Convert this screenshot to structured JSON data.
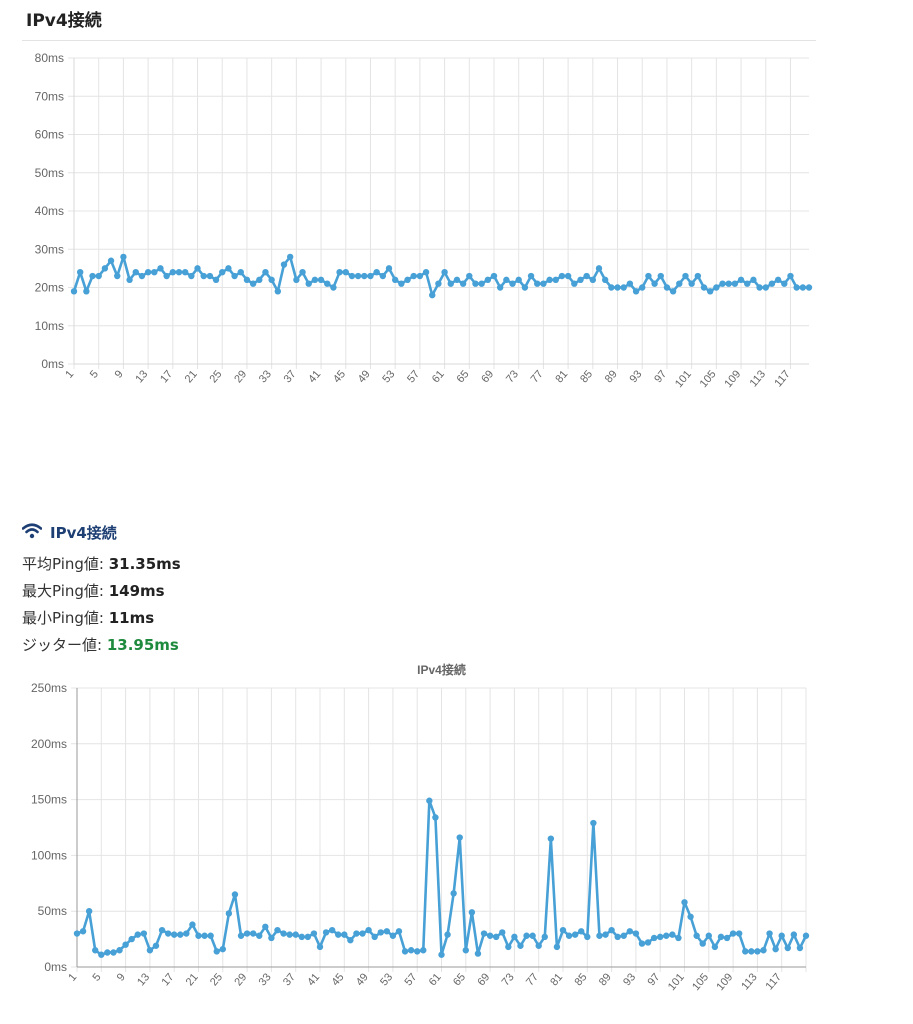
{
  "section1": {
    "title": "IPv4接続"
  },
  "section2": {
    "title": "IPv4接続",
    "icon": "wifi-icon",
    "stats": [
      {
        "label": "平均Ping値: ",
        "value": "31.35ms",
        "color": "#222222"
      },
      {
        "label": "最大Ping値: ",
        "value": "149ms",
        "color": "#222222"
      },
      {
        "label": "最小Ping値: ",
        "value": "11ms",
        "color": "#222222"
      },
      {
        "label": "ジッター値: ",
        "value": "13.95ms",
        "color": "#1e8a3e"
      }
    ]
  },
  "chart_data": [
    {
      "type": "line",
      "title": "",
      "x_ticks": [
        1,
        5,
        9,
        13,
        17,
        21,
        25,
        29,
        33,
        37,
        41,
        45,
        49,
        53,
        57,
        61,
        65,
        69,
        73,
        77,
        81,
        85,
        89,
        93,
        97,
        101,
        105,
        109,
        113,
        117
      ],
      "y_ticks": [
        "0ms",
        "10ms",
        "20ms",
        "30ms",
        "40ms",
        "50ms",
        "60ms",
        "70ms",
        "80ms"
      ],
      "ylim": [
        0,
        80
      ],
      "grid": true,
      "color": "#47a0d6",
      "series": [
        {
          "values": [
            19,
            24,
            19,
            23,
            23,
            25,
            27,
            23,
            28,
            22,
            24,
            23,
            24,
            24,
            25,
            23,
            24,
            24,
            24,
            23,
            25,
            23,
            23,
            22,
            24,
            25,
            23,
            24,
            22,
            21,
            22,
            24,
            22,
            19,
            26,
            28,
            22,
            24,
            21,
            22,
            22,
            21,
            20,
            24,
            24,
            23,
            23,
            23,
            23,
            24,
            23,
            25,
            22,
            21,
            22,
            23,
            23,
            24,
            18,
            21,
            24,
            21,
            22,
            21,
            23,
            21,
            21,
            22,
            23,
            20,
            22,
            21,
            22,
            20,
            23,
            21,
            21,
            22,
            22,
            23,
            23,
            21,
            22,
            23,
            22,
            25,
            22,
            20,
            20,
            20,
            21,
            19,
            20,
            23,
            21,
            23,
            20,
            19,
            21,
            23,
            21,
            23,
            20,
            19,
            20,
            21,
            21,
            21,
            22,
            21,
            22,
            20,
            20,
            21,
            22,
            21,
            23,
            20,
            20,
            20
          ]
        }
      ]
    },
    {
      "type": "line",
      "title": "IPv4接続",
      "x_ticks": [
        1,
        5,
        9,
        13,
        17,
        21,
        25,
        29,
        33,
        37,
        41,
        45,
        49,
        53,
        57,
        61,
        65,
        69,
        73,
        77,
        81,
        85,
        89,
        93,
        97,
        101,
        105,
        109,
        113,
        117
      ],
      "y_ticks": [
        "0ms",
        "50ms",
        "100ms",
        "150ms",
        "200ms",
        "250ms"
      ],
      "ylim": [
        0,
        250
      ],
      "grid": true,
      "color": "#47a0d6",
      "series": [
        {
          "values": [
            30,
            32,
            50,
            15,
            11,
            13,
            13,
            15,
            20,
            25,
            29,
            30,
            15,
            19,
            33,
            30,
            29,
            29,
            30,
            38,
            28,
            28,
            28,
            14,
            16,
            48,
            65,
            28,
            30,
            30,
            28,
            36,
            26,
            33,
            30,
            29,
            29,
            27,
            27,
            30,
            18,
            31,
            33,
            29,
            29,
            24,
            30,
            30,
            33,
            27,
            31,
            32,
            28,
            32,
            14,
            15,
            14,
            15,
            149,
            134,
            11,
            29,
            66,
            116,
            15,
            49,
            12,
            30,
            28,
            27,
            31,
            18,
            27,
            19,
            28,
            28,
            19,
            27,
            115,
            18,
            33,
            28,
            29,
            32,
            27,
            129,
            28,
            29,
            33,
            27,
            28,
            32,
            30,
            21,
            22,
            26,
            27,
            28,
            29,
            26,
            58,
            45,
            28,
            21,
            28,
            18,
            27,
            26,
            30,
            30,
            14,
            14,
            14,
            15,
            30,
            16,
            28,
            17,
            29,
            17,
            28
          ]
        }
      ]
    }
  ]
}
